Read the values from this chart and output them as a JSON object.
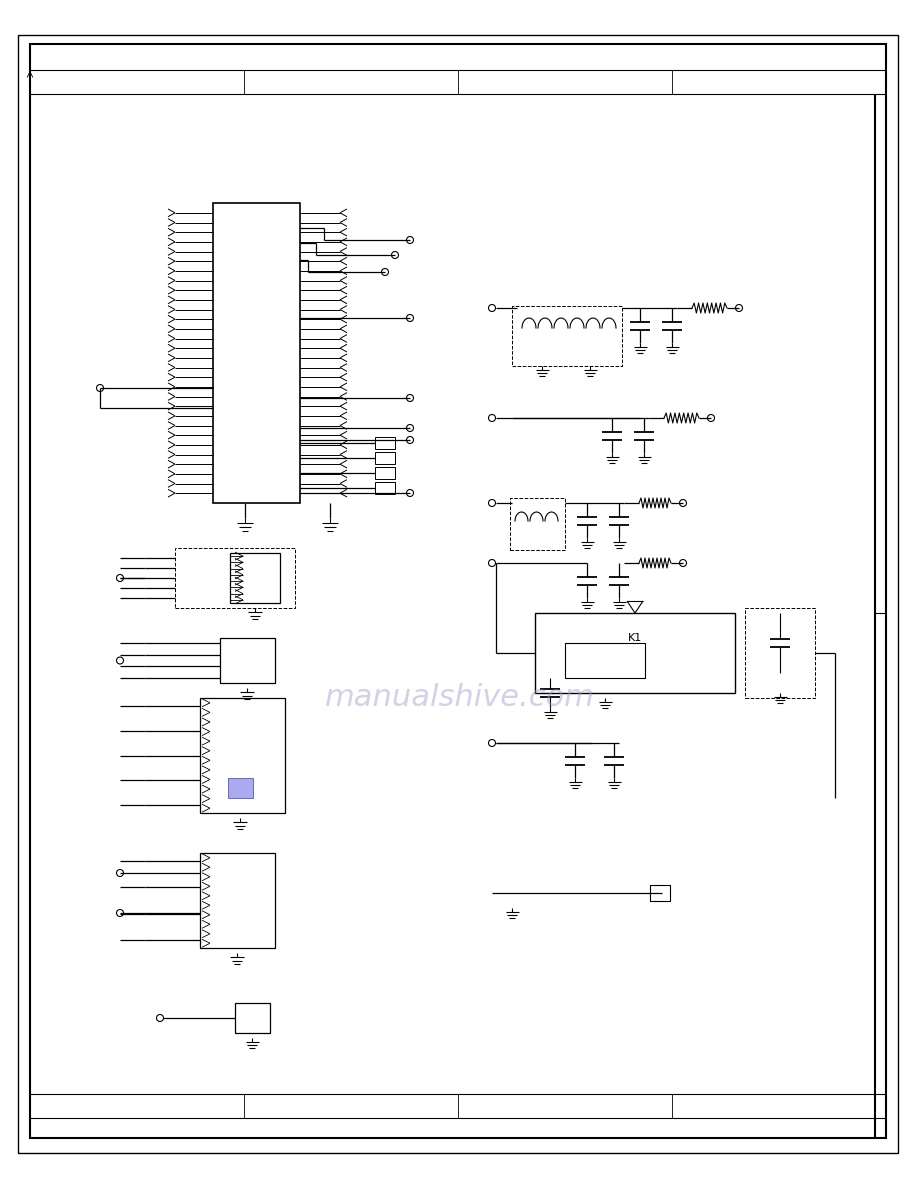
{
  "bg_color": "#ffffff",
  "line_color": "#000000",
  "page_width": 9.18,
  "page_height": 11.88,
  "watermark_text": "manualshive.com",
  "watermark_color": "#9999cc"
}
